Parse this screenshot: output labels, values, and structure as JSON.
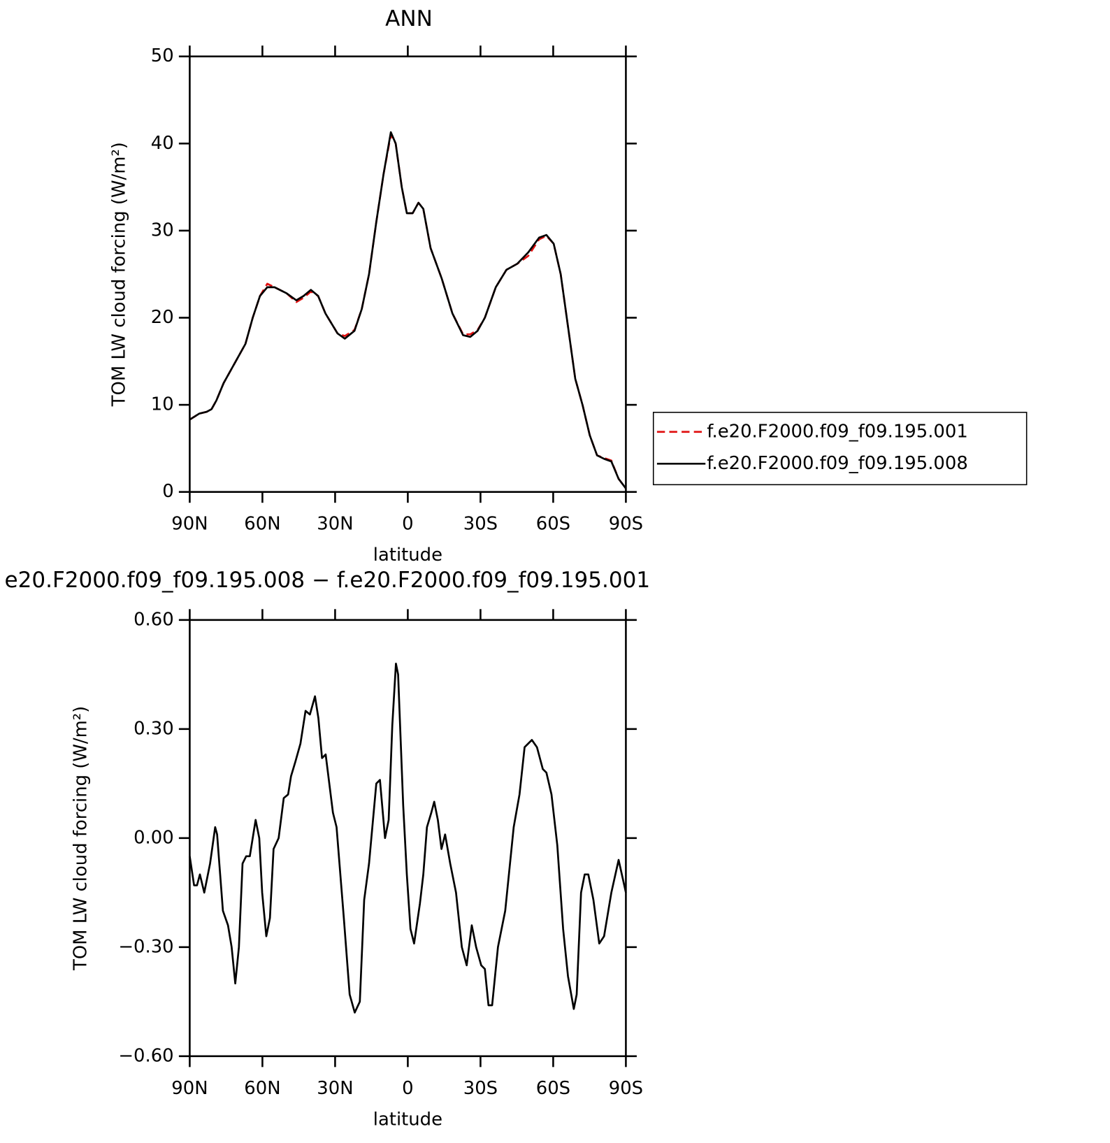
{
  "chart_data": [
    {
      "type": "line",
      "title": "ANN",
      "xlabel": "latitude",
      "ylabel": "TOM LW cloud forcing (W/m²)",
      "x": [
        90,
        86,
        83,
        81,
        79,
        76,
        73,
        70,
        67,
        64,
        61,
        58,
        55,
        50,
        46,
        43,
        40,
        37,
        34,
        29,
        26,
        22,
        19,
        16,
        13,
        10,
        7,
        5,
        2.5,
        0.4,
        -2,
        -4.4,
        -6.4,
        -9.4,
        -14,
        -18.4,
        -22.8,
        -25.8,
        -28.8,
        -31.8,
        -36.3,
        -40.7,
        -45.2,
        -49.7,
        -54.2,
        -57.2,
        -60.2,
        -63.1,
        -66.1,
        -69.1,
        -72.1,
        -75.1,
        -78.1,
        -81,
        -84,
        -87,
        -90
      ],
      "series": [
        {
          "name": "f.e20.F2000.f09_f09.195.001",
          "color": "#e01010",
          "dash": true,
          "values": [
            8.3,
            9.0,
            9.2,
            9.5,
            10.5,
            12.5,
            14,
            15.5,
            17,
            20,
            22.5,
            23.9,
            23.5,
            22.8,
            21.8,
            22.3,
            23.0,
            22.5,
            20.5,
            18.2,
            17.9,
            18.6,
            21,
            25,
            31,
            36.5,
            41.0,
            40,
            35,
            32,
            32,
            33.2,
            32.5,
            28,
            24.5,
            20.5,
            18.1,
            18.1,
            18.6,
            20,
            23.5,
            25.5,
            26.2,
            27.1,
            29.0,
            29.4,
            28.5,
            25,
            19,
            13,
            10,
            6.5,
            4.2,
            3.9,
            3.6,
            1.5,
            0.4
          ]
        },
        {
          "name": "f.e20.F2000.f09_f09.195.008",
          "color": "#000000",
          "dash": false,
          "values": [
            8.3,
            9.0,
            9.2,
            9.5,
            10.5,
            12.5,
            14,
            15.5,
            17,
            20,
            22.5,
            23.5,
            23.5,
            22.8,
            22.0,
            22.5,
            23.2,
            22.5,
            20.5,
            18.2,
            17.6,
            18.5,
            21,
            25,
            31,
            36.5,
            41.3,
            40,
            35,
            32,
            32,
            33.2,
            32.5,
            28,
            24.5,
            20.5,
            18,
            17.8,
            18.5,
            20,
            23.5,
            25.5,
            26.2,
            27.5,
            29.2,
            29.5,
            28.5,
            25,
            19,
            13,
            10,
            6.5,
            4.2,
            3.8,
            3.5,
            1.5,
            0.4
          ]
        }
      ],
      "xlim": [
        90,
        -90
      ],
      "xticks": [
        {
          "value": 90,
          "label": "90N"
        },
        {
          "value": 60,
          "label": "60N"
        },
        {
          "value": 30,
          "label": "30N"
        },
        0,
        {
          "value": -30,
          "label": "30S"
        },
        {
          "value": -60,
          "label": "60S"
        },
        {
          "value": -90,
          "label": "90S"
        }
      ],
      "ylim": [
        0,
        50
      ],
      "yticks": [
        0,
        10,
        20,
        30,
        40,
        50
      ],
      "legend": "right"
    },
    {
      "type": "line",
      "title": "e20.F2000.f09_f09.195.008 − f.e20.F2000.f09_f09.195.001",
      "xlabel": "latitude",
      "ylabel": "TOM LW cloud forcing (W/m²)",
      "x": [
        90,
        88.2,
        87,
        85.8,
        84,
        81.6,
        79.5,
        78.7,
        76.3,
        74.2,
        72.7,
        71.2,
        69.7,
        68.2,
        66.7,
        65.2,
        62.8,
        61.3,
        60.1,
        58.4,
        56.9,
        55.4,
        53.3,
        51.2,
        49.4,
        48.2,
        46.4,
        44.3,
        42.2,
        40.4,
        38.3,
        36.9,
        35.4,
        33.9,
        32.4,
        30.9,
        29.4,
        26.4,
        24,
        21.9,
        19.8,
        18,
        16,
        13,
        11.5,
        9.4,
        7.9,
        6.4,
        4.9,
        4,
        1.9,
        0.4,
        -1.1,
        -2.6,
        -5,
        -6.4,
        -7.9,
        -9.7,
        -10.9,
        -12.4,
        -13.9,
        -15.4,
        -17.5,
        -19.9,
        -22.3,
        -24.3,
        -26.4,
        -28.2,
        -30.3,
        -31.8,
        -33.3,
        -34.8,
        -37.2,
        -40.2,
        -43.7,
        -46.1,
        -48.2,
        -49.7,
        -51.2,
        -53.3,
        -55.7,
        -57.2,
        -59.3,
        -61.7,
        -64.1,
        -66.1,
        -68.5,
        -69.7,
        -71.5,
        -73,
        -74.5,
        -76.6,
        -79,
        -81,
        -84,
        -87,
        -90
      ],
      "series": [
        {
          "color": "#000000",
          "dash": false,
          "values": [
            -0.05,
            -0.13,
            -0.13,
            -0.1,
            -0.15,
            -0.07,
            0.03,
            0.01,
            -0.2,
            -0.24,
            -0.3,
            -0.4,
            -0.3,
            -0.07,
            -0.05,
            -0.05,
            0.05,
            0.0,
            -0.15,
            -0.27,
            -0.22,
            -0.03,
            0.0,
            0.11,
            0.12,
            0.17,
            0.21,
            0.26,
            0.35,
            0.34,
            0.39,
            0.33,
            0.22,
            0.23,
            0.15,
            0.07,
            0.03,
            -0.22,
            -0.43,
            -0.48,
            -0.45,
            -0.17,
            -0.07,
            0.15,
            0.16,
            0.0,
            0.05,
            0.31,
            0.48,
            0.45,
            0.09,
            -0.1,
            -0.25,
            -0.29,
            -0.18,
            -0.1,
            0.03,
            0.07,
            0.1,
            0.05,
            -0.03,
            0.01,
            -0.07,
            -0.15,
            -0.3,
            -0.35,
            -0.24,
            -0.3,
            -0.35,
            -0.36,
            -0.46,
            -0.46,
            -0.3,
            -0.2,
            0.03,
            0.12,
            0.25,
            0.26,
            0.27,
            0.25,
            0.19,
            0.18,
            0.12,
            -0.02,
            -0.25,
            -0.38,
            -0.47,
            -0.43,
            -0.15,
            -0.1,
            -0.1,
            -0.17,
            -0.29,
            -0.27,
            -0.15,
            -0.06,
            -0.15
          ]
        }
      ],
      "xlim": [
        90,
        -90
      ],
      "xticks": [
        {
          "value": 90,
          "label": "90N"
        },
        {
          "value": 60,
          "label": "60N"
        },
        {
          "value": 30,
          "label": "30N"
        },
        0,
        {
          "value": -30,
          "label": "30S"
        },
        {
          "value": -60,
          "label": "60S"
        },
        {
          "value": -90,
          "label": "90S"
        }
      ],
      "ylim": [
        -0.6,
        0.6
      ],
      "yticks": [
        {
          "value": -0.6,
          "label": "−0.60"
        },
        {
          "value": -0.3,
          "label": "−0.30"
        },
        {
          "value": 0,
          "label": "0.00"
        },
        {
          "value": 0.3,
          "label": "0.30"
        },
        {
          "value": 0.6,
          "label": "0.60"
        }
      ]
    }
  ]
}
